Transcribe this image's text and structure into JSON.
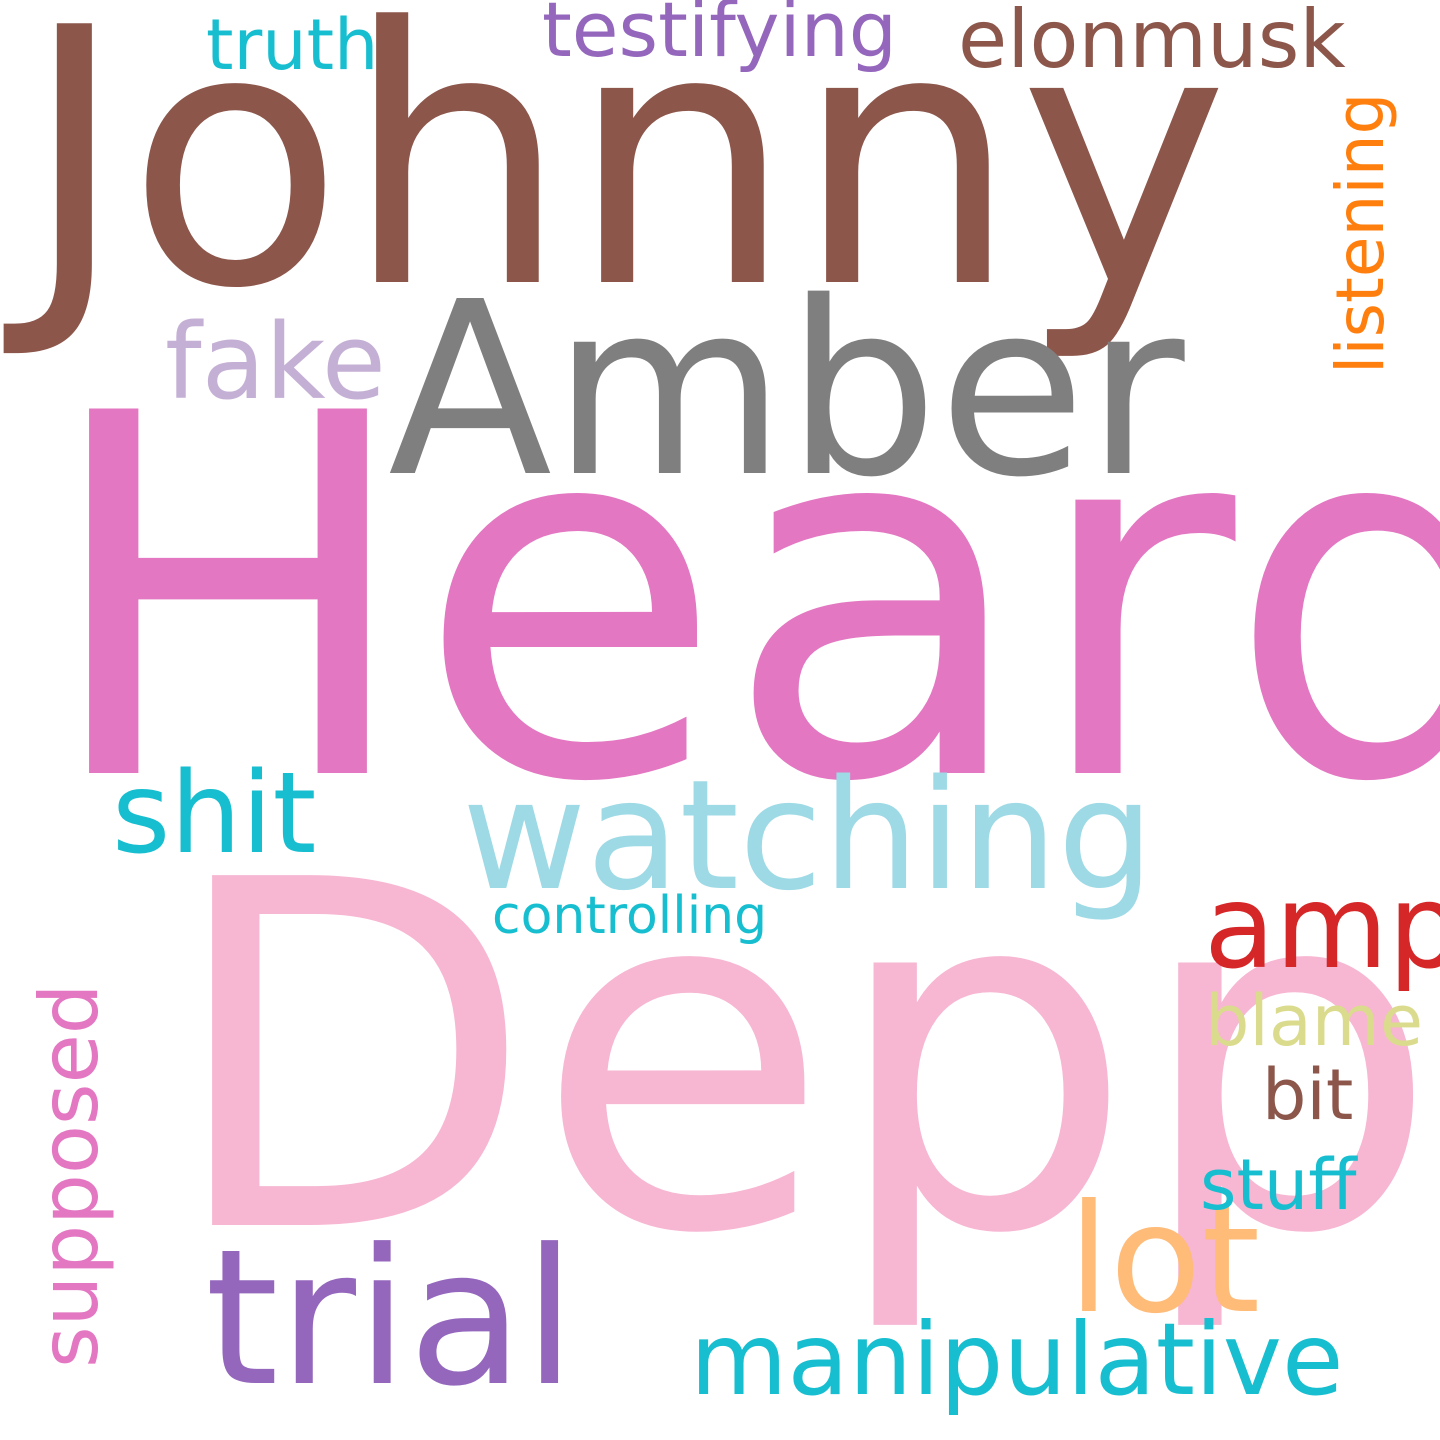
{
  "words": [
    {
      "id": "johnny",
      "text": "Johnny",
      "color": "#8c564b"
    },
    {
      "id": "heard",
      "text": "Heard",
      "color": "#e377c2"
    },
    {
      "id": "amber",
      "text": "Amber",
      "color": "#7f7f7f"
    },
    {
      "id": "depp",
      "text": "Depp",
      "color": "#f7b6d2"
    },
    {
      "id": "watching",
      "text": "watching",
      "color": "#9edae5"
    },
    {
      "id": "trial",
      "text": "trial",
      "color": "#9467bd"
    },
    {
      "id": "manipulative",
      "text": "manipulative",
      "color": "#17becf"
    },
    {
      "id": "shit",
      "text": "shit",
      "color": "#17becf"
    },
    {
      "id": "amp",
      "text": "amp",
      "color": "#d62728"
    },
    {
      "id": "lot",
      "text": "lot",
      "color": "#ffbb78"
    },
    {
      "id": "fake",
      "text": "fake",
      "color": "#c5b0d5"
    },
    {
      "id": "testifying",
      "text": "testifying",
      "color": "#9467bd"
    },
    {
      "id": "elonmusk",
      "text": "elonmusk",
      "color": "#8c564b"
    },
    {
      "id": "truth",
      "text": "truth",
      "color": "#17becf"
    },
    {
      "id": "listening",
      "text": "listening",
      "color": "#ff7f0e"
    },
    {
      "id": "controlling",
      "text": "controlling",
      "color": "#17becf"
    },
    {
      "id": "blame",
      "text": "blame",
      "color": "#dbdb8d"
    },
    {
      "id": "bit",
      "text": "bit",
      "color": "#8c564b"
    },
    {
      "id": "stuff",
      "text": "stuff",
      "color": "#17becf"
    },
    {
      "id": "supposed",
      "text": "supposed",
      "color": "#e377c2"
    }
  ]
}
